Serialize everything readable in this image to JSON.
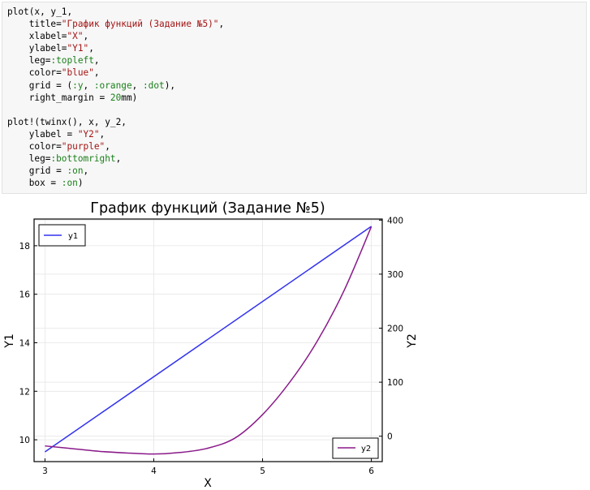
{
  "code_cell": {
    "lines": [
      [
        {
          "t": "plot(x, y_1,",
          "c": "p"
        }
      ],
      [
        {
          "t": "    title=",
          "c": "p"
        },
        {
          "t": "\"График функций (Задание №5)\"",
          "c": "s"
        },
        {
          "t": ",",
          "c": "p"
        }
      ],
      [
        {
          "t": "    xlabel=",
          "c": "p"
        },
        {
          "t": "\"X\"",
          "c": "s"
        },
        {
          "t": ",",
          "c": "p"
        }
      ],
      [
        {
          "t": "    ylabel=",
          "c": "p"
        },
        {
          "t": "\"Y1\"",
          "c": "s"
        },
        {
          "t": ",",
          "c": "p"
        }
      ],
      [
        {
          "t": "    leg=",
          "c": "p"
        },
        {
          "t": ":topleft",
          "c": "y"
        },
        {
          "t": ",",
          "c": "p"
        }
      ],
      [
        {
          "t": "    color=",
          "c": "p"
        },
        {
          "t": "\"blue\"",
          "c": "s"
        },
        {
          "t": ",",
          "c": "p"
        }
      ],
      [
        {
          "t": "    grid = (",
          "c": "p"
        },
        {
          "t": ":y",
          "c": "y"
        },
        {
          "t": ", ",
          "c": "p"
        },
        {
          "t": ":orange",
          "c": "y"
        },
        {
          "t": ", ",
          "c": "p"
        },
        {
          "t": ":dot",
          "c": "y"
        },
        {
          "t": "),",
          "c": "p"
        }
      ],
      [
        {
          "t": "    right_margin = ",
          "c": "p"
        },
        {
          "t": "20",
          "c": "n"
        },
        {
          "t": "mm)",
          "c": "p"
        }
      ],
      [
        {
          "t": "",
          "c": "p"
        }
      ],
      [
        {
          "t": "plot!(twinx(), x, y_2,",
          "c": "p"
        }
      ],
      [
        {
          "t": "    ylabel = ",
          "c": "p"
        },
        {
          "t": "\"Y2\"",
          "c": "s"
        },
        {
          "t": ",",
          "c": "p"
        }
      ],
      [
        {
          "t": "    color=",
          "c": "p"
        },
        {
          "t": "\"purple\"",
          "c": "s"
        },
        {
          "t": ",",
          "c": "p"
        }
      ],
      [
        {
          "t": "    leg=",
          "c": "p"
        },
        {
          "t": ":bottomright",
          "c": "y"
        },
        {
          "t": ",",
          "c": "p"
        }
      ],
      [
        {
          "t": "    grid = ",
          "c": "p"
        },
        {
          "t": ":on",
          "c": "y"
        },
        {
          "t": ",",
          "c": "p"
        }
      ],
      [
        {
          "t": "    box = ",
          "c": "p"
        },
        {
          "t": ":on",
          "c": "y"
        },
        {
          "t": ")",
          "c": "p"
        }
      ]
    ]
  },
  "colors": {
    "string": "#a31515",
    "symbol": "#1a7f1a",
    "series_y1": "#3232ee",
    "series_y2": "#8a1a8a",
    "grid": "#e6e6e6"
  },
  "chart_data": {
    "type": "line",
    "title": "График функций (Задание №5)",
    "xlabel": "X",
    "ylabel_left": "Y1",
    "ylabel_right": "Y2",
    "xlim": [
      2.9,
      6.1
    ],
    "ylim_left": [
      9.1,
      19.1
    ],
    "ylim_right": [
      -47,
      402
    ],
    "x_ticks": [
      3,
      4,
      5,
      6
    ],
    "y_left_ticks": [
      10,
      12,
      14,
      16,
      18
    ],
    "y_right_ticks": [
      0,
      100,
      200,
      300,
      400
    ],
    "grid": true,
    "series": [
      {
        "name": "y1",
        "axis": "left",
        "legend": "top-left",
        "x": [
          3,
          6
        ],
        "y": [
          9.5,
          18.8
        ]
      },
      {
        "name": "y2",
        "axis": "right",
        "legend": "bottom-right",
        "x": [
          3.0,
          3.25,
          3.5,
          3.75,
          4.0,
          4.25,
          4.5,
          4.75,
          5.0,
          5.25,
          5.5,
          5.75,
          6.0
        ],
        "y": [
          -18,
          -23,
          -28,
          -31,
          -33,
          -30,
          -22,
          -3,
          40,
          100,
          175,
          270,
          388
        ]
      }
    ]
  }
}
